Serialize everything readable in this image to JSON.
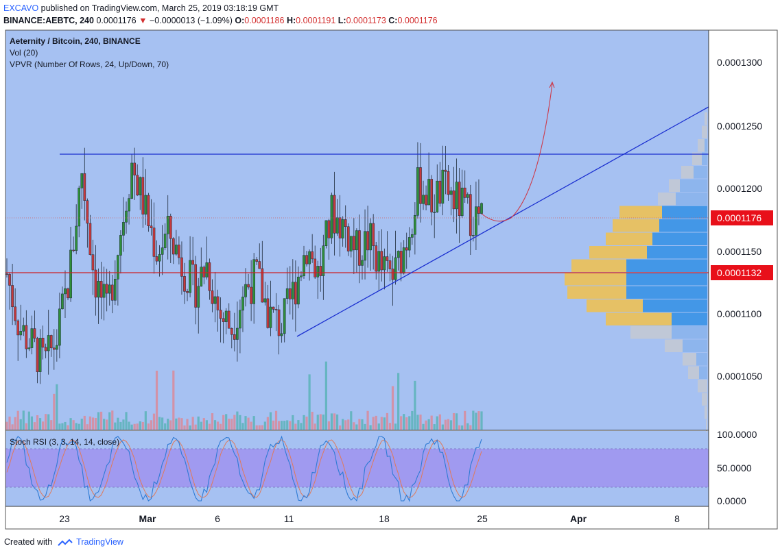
{
  "header": {
    "publisher": "EXCAVO",
    "published_text": " published on TradingView.com, March 25, 2019 03:18:19 GMT",
    "symbol": "BINANCE:AEBTC, 240",
    "price": "0.0001176",
    "change_arrow": "▼",
    "change": "−0.0000013 (−1.09%)",
    "o_label": "O:",
    "o_value": "0.0001186",
    "h_label": "H:",
    "h_value": "0.0001191",
    "l_label": "L:",
    "l_value": "0.0001173",
    "c_label": "C:",
    "c_value": "0.0001176"
  },
  "legend": {
    "title": "Aeternity / Bitcoin, 240, BINANCE",
    "volume": "Vol (20)",
    "vpvr": "VPVR (Number Of Rows, 24, Up/Down, 70)"
  },
  "stoch": {
    "label": "Stoch RSI (3, 3, 14, 14, close)",
    "ticks": [
      "100.0000",
      "50.0000",
      "0.0000"
    ]
  },
  "price_axis": {
    "ticks": [
      "0.0001300",
      "0.0001250",
      "0.0001200",
      "0.0001150",
      "0.0001100",
      "0.0001050"
    ],
    "last_price_tag": "0.0001176",
    "level_tag": "0.0001132"
  },
  "time_axis": {
    "labels": [
      "23",
      "Mar",
      "6",
      "11",
      "18",
      "25",
      "Apr",
      "8"
    ]
  },
  "footer": {
    "created": "Created with",
    "brand": "TradingView"
  },
  "colors": {
    "background": "#a6c1f2",
    "up": "#2f8f3a",
    "down": "#c6393c",
    "resistance": "#1a2fd0",
    "support_level": "#cc2027",
    "trendline": "#1a2fd0",
    "projection": "#cc3a4a",
    "stoch_band": "#a09af0",
    "stoch_k": "#2f7bd4",
    "stoch_d": "#e07a5a",
    "vp_up": "#3d95e6",
    "vp_down": "#e9c15d",
    "vp_grey": "#c3c9d4",
    "price_tag": "#e8101a"
  },
  "chart_data": {
    "type": "candlestick",
    "symbol": "AEBTC",
    "timeframe": "240",
    "y_range": [
      0.000102,
      0.000133
    ],
    "x_ticks": [
      "23",
      "Mar",
      "6",
      "11",
      "18",
      "25",
      "Apr",
      "8"
    ],
    "candles_close_approx": [
      0.0001132,
      0.000109,
      0.0001075,
      0.000106,
      0.000108,
      0.000113,
      0.0001215,
      0.000113,
      0.00011,
      0.000116,
      0.000122,
      0.0001185,
      0.000115,
      0.0001165,
      0.000114,
      0.000112,
      0.000114,
      0.00011,
      0.000109,
      0.000112,
      0.000113,
      0.00011,
      0.000109,
      0.000112,
      0.0001155,
      0.000113,
      0.000118,
      0.000117,
      0.000115,
      0.000116,
      0.0001135,
      0.000113,
      0.000116,
      0.0001205,
      0.000119,
      0.00012,
      0.000119,
      0.000118,
      0.0001176
    ],
    "resistance_level": 0.0001228,
    "support_level": 0.0001132,
    "last_price": 0.0001176,
    "trendline": [
      {
        "x": "11",
        "y": 0.0001082
      },
      {
        "x": "8",
        "y": 0.0001265
      }
    ],
    "volume_profile_rows": 24,
    "stoch_rsi": {
      "params": "3, 3, 14, 14",
      "range": [
        0,
        100
      ],
      "band": [
        20,
        80
      ]
    }
  }
}
